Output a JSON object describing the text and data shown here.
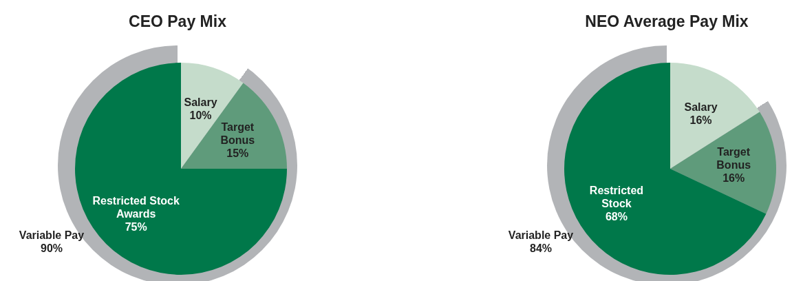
{
  "chart_data": [
    {
      "type": "pie",
      "title": "CEO Pay Mix",
      "categories": [
        "Salary",
        "Target\nBonus",
        "Restricted Stock\nAwards"
      ],
      "values": [
        10,
        15,
        75
      ],
      "colors": [
        "#c5dccb",
        "#5f9b7b",
        "#00784a"
      ],
      "value_labels": [
        "10%",
        "15%",
        "75%"
      ],
      "annotations": [
        "Variable Pay\n90%"
      ]
    },
    {
      "type": "pie",
      "title": "NEO Average Pay Mix",
      "categories": [
        "Salary",
        "Target\nBonus",
        "Restricted\nStock"
      ],
      "values": [
        16,
        16,
        68
      ],
      "colors": [
        "#c5dccb",
        "#5f9b7b",
        "#00784a"
      ],
      "value_labels": [
        "16%",
        "16%",
        "68%"
      ],
      "annotations": [
        "Variable Pay\n84%"
      ]
    }
  ]
}
